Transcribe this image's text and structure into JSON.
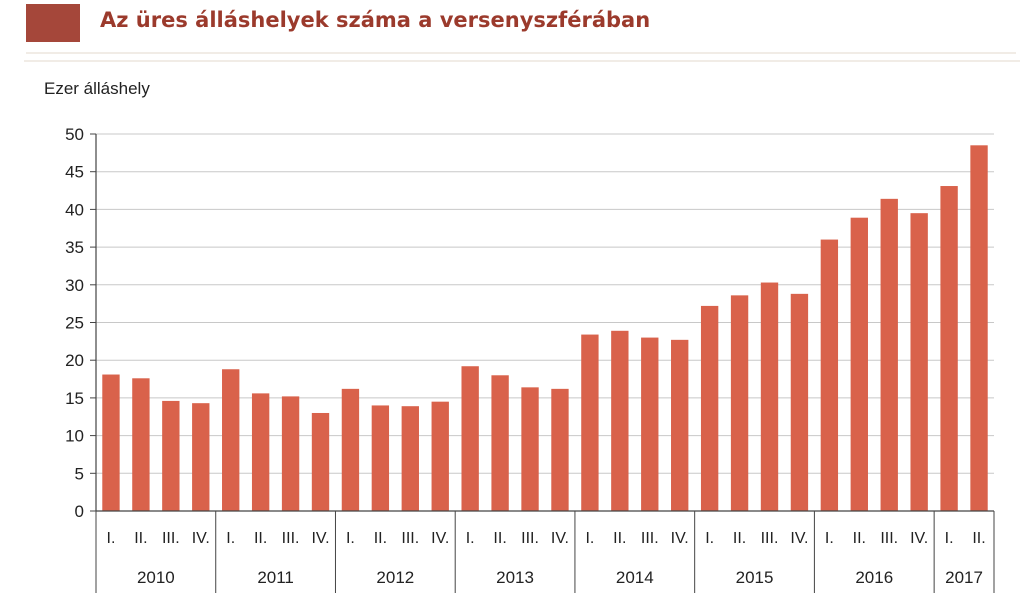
{
  "header": {
    "title": "Az üres álláshelyek száma a versenyszférában",
    "swatch_color": "#a5473a",
    "title_color": "#9b3a2c",
    "divider_color": "#f1ece6"
  },
  "chart_data": {
    "type": "bar",
    "title": "Az üres álláshelyek száma a versenyszférában",
    "ylabel": "Ezer álláshely",
    "xlabel": "",
    "ylim": [
      0,
      50
    ],
    "yticks": [
      0,
      5,
      10,
      15,
      20,
      25,
      30,
      35,
      40,
      45,
      50
    ],
    "grid": true,
    "bar_color": "#d9624b",
    "quarter_labels": [
      "I.",
      "II.",
      "III.",
      "IV.",
      "I.",
      "II.",
      "III.",
      "IV.",
      "I.",
      "II.",
      "III.",
      "IV.",
      "I.",
      "II.",
      "III.",
      "IV.",
      "I.",
      "II.",
      "III.",
      "IV.",
      "I.",
      "II.",
      "III.",
      "IV.",
      "I.",
      "II.",
      "III.",
      "IV.",
      "I.",
      "II."
    ],
    "years": [
      {
        "label": "2010",
        "quarters": 4
      },
      {
        "label": "2011",
        "quarters": 4
      },
      {
        "label": "2012",
        "quarters": 4
      },
      {
        "label": "2013",
        "quarters": 4
      },
      {
        "label": "2014",
        "quarters": 4
      },
      {
        "label": "2015",
        "quarters": 4
      },
      {
        "label": "2016",
        "quarters": 4
      },
      {
        "label": "2017",
        "quarters": 2
      }
    ],
    "values": [
      18.1,
      17.6,
      14.6,
      14.3,
      18.8,
      15.6,
      15.2,
      13.0,
      16.2,
      14.0,
      13.9,
      14.5,
      19.2,
      18.0,
      16.4,
      16.2,
      23.4,
      23.9,
      23.0,
      22.7,
      27.2,
      28.6,
      30.3,
      28.8,
      36.0,
      38.9,
      41.4,
      39.5,
      43.1,
      48.5
    ]
  }
}
